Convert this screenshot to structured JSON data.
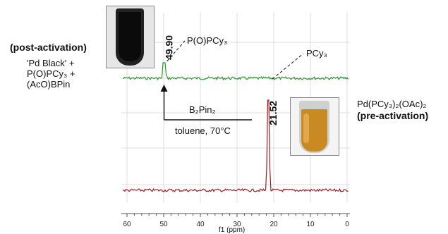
{
  "chart_data": {
    "type": "line",
    "xlabel": "f1 (ppm)",
    "xlim": [
      61,
      -1
    ],
    "x_direction": "reversed",
    "x_ticks": [
      "60",
      "50",
      "40",
      "30",
      "20",
      "10",
      "0"
    ],
    "y_axis": "none",
    "series": [
      {
        "name": "(post-activation)",
        "color": "#2e9a2e",
        "peaks": [
          {
            "x": 49.9,
            "label": "49.90"
          }
        ]
      },
      {
        "name": "(pre-activation)",
        "color": "#a01c24",
        "peaks": [
          {
            "x": 21.52,
            "label": "21.52"
          }
        ]
      }
    ],
    "annotations": {
      "post_label": "(post-activation)",
      "post_species": [
        "'Pd Black' +",
        "P(O)PCy₃ +",
        "(AcO)BPin"
      ],
      "pre_species": "Pd(PCy₃)₂(OAc)₂",
      "pre_label": "(pre-activation)",
      "peak_49_assignment": "P(O)PCy₃",
      "peak_21_assignment": "PCy₃",
      "reagent": "B₂Pin₂",
      "conditions": "toluene, 70°C"
    },
    "grid": true
  },
  "photos": {
    "post_vial": "dark black suspension in vial",
    "pre_vial": "amber orange solution in vial"
  }
}
